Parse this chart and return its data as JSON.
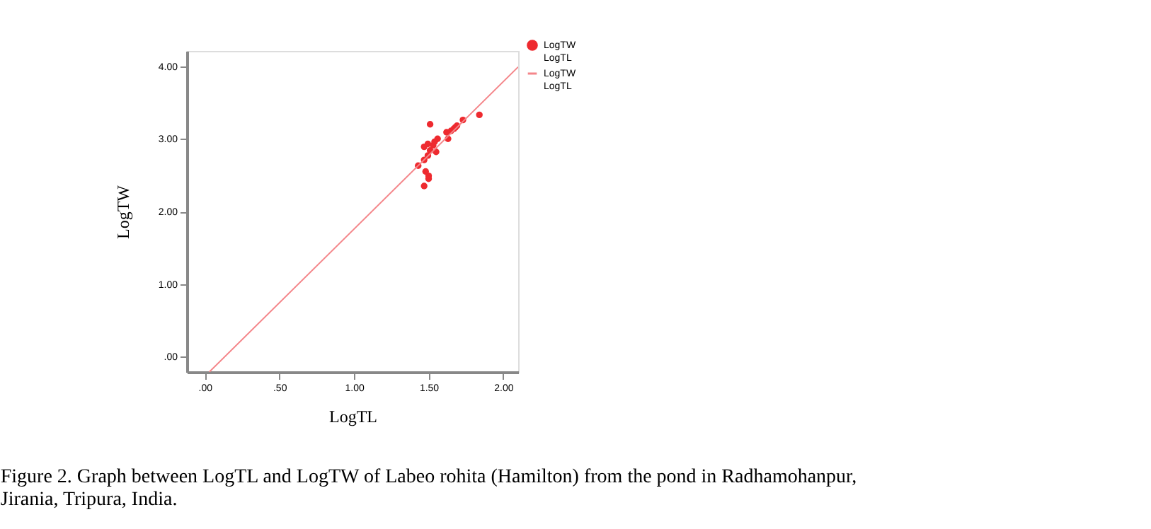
{
  "chart_data": {
    "type": "scatter",
    "xlabel": "LogTL",
    "ylabel": "LogTW",
    "xlim": [
      -0.12,
      2.1
    ],
    "ylim": [
      -0.21,
      4.21
    ],
    "xticks": [
      {
        "value": 0,
        "label": ".00"
      },
      {
        "value": 0.5,
        "label": ".50"
      },
      {
        "value": 1,
        "label": "1.00"
      },
      {
        "value": 1.5,
        "label": "1.50"
      },
      {
        "value": 2,
        "label": "2.00"
      }
    ],
    "yticks": [
      {
        "value": 0,
        "label": ".00"
      },
      {
        "value": 1,
        "label": "1.00"
      },
      {
        "value": 2,
        "label": "2.00"
      },
      {
        "value": 3,
        "label": "3.00"
      },
      {
        "value": 4,
        "label": "4.00"
      }
    ],
    "grid": false,
    "legend": "top right",
    "series": [
      {
        "name": "LogTW LogTL",
        "marker": "circle",
        "color": "#ee2a2f",
        "x": [
          1.43,
          1.47,
          1.47,
          1.47,
          1.48,
          1.495,
          1.495,
          1.5,
          1.5,
          1.51,
          1.51,
          1.53,
          1.54,
          1.55,
          1.56,
          1.62,
          1.63,
          1.65,
          1.67,
          1.68,
          1.69,
          1.73,
          1.84
        ],
        "values": [
          2.63,
          2.89,
          2.71,
          2.35,
          2.55,
          2.93,
          2.77,
          2.49,
          2.45,
          3.2,
          2.84,
          2.91,
          2.96,
          2.82,
          3.0,
          3.09,
          3.0,
          3.11,
          3.14,
          3.16,
          3.18,
          3.26,
          3.33
        ]
      },
      {
        "name": "LogTW LogTL",
        "type": "line",
        "marker": "none",
        "color": "#f4868a",
        "x": [
          0.03,
          2.1
        ],
        "values": [
          -0.21,
          3.99
        ]
      }
    ],
    "annotations": [
      "Figure 2. Graph between LogTL and LogTW of Labeo rohita (Hamilton) from the pond in Radhamohanpur, Jirania, Tripura, India."
    ]
  }
}
